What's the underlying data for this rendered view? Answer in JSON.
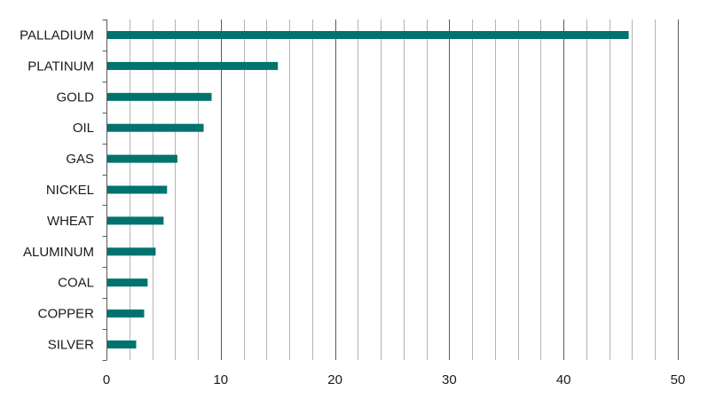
{
  "chart_data": {
    "type": "bar",
    "orientation": "horizontal",
    "categories": [
      "PALLADIUM",
      "PLATINUM",
      "GOLD",
      "OIL",
      "GAS",
      "NICKEL",
      "WHEAT",
      "ALUMINUM",
      "COAL",
      "COPPER",
      "SILVER"
    ],
    "values": [
      45.7,
      15.0,
      9.2,
      8.5,
      6.2,
      5.3,
      5.0,
      4.3,
      3.6,
      3.3,
      2.6
    ],
    "xlim": [
      0,
      50
    ],
    "xticks": [
      0,
      10,
      20,
      30,
      40,
      50
    ],
    "title": "",
    "xlabel": "",
    "ylabel": "",
    "grid": true,
    "bar_color": "#00736e",
    "major_grid_color": "#5a5a5a",
    "minor_grid_color": "#b4b4b4"
  }
}
